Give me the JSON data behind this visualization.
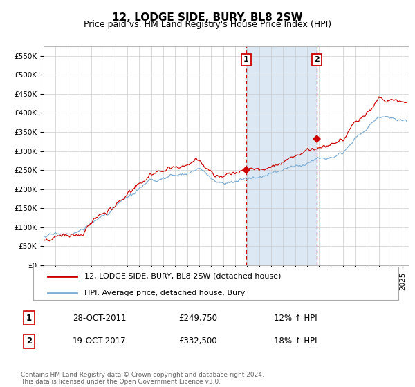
{
  "title": "12, LODGE SIDE, BURY, BL8 2SW",
  "subtitle": "Price paid vs. HM Land Registry's House Price Index (HPI)",
  "ylim": [
    0,
    575000
  ],
  "yticks": [
    0,
    50000,
    100000,
    150000,
    200000,
    250000,
    300000,
    350000,
    400000,
    450000,
    500000,
    550000
  ],
  "ytick_labels": [
    "£0",
    "£50K",
    "£100K",
    "£150K",
    "£200K",
    "£250K",
    "£300K",
    "£350K",
    "£400K",
    "£450K",
    "£500K",
    "£550K"
  ],
  "sale1_date_num": 2011.92,
  "sale1_price": 249750,
  "sale1_label": "1",
  "sale1_text": "28-OCT-2011",
  "sale1_value_text": "£249,750",
  "sale1_hpi_text": "12% ↑ HPI",
  "sale2_date_num": 2017.8,
  "sale2_price": 332500,
  "sale2_label": "2",
  "sale2_text": "19-OCT-2017",
  "sale2_value_text": "£332,500",
  "sale2_hpi_text": "18% ↑ HPI",
  "shade_color": "#dce9f5",
  "vline_color": "#cc0000",
  "line1_color": "#cc0000",
  "line2_color": "#7dadd4",
  "marker_color": "#cc0000",
  "grid_color": "#cccccc",
  "bg_color": "#ffffff",
  "legend_label1": "12, LODGE SIDE, BURY, BL8 2SW (detached house)",
  "legend_label2": "HPI: Average price, detached house, Bury",
  "footer": "Contains HM Land Registry data © Crown copyright and database right 2024.\nThis data is licensed under the Open Government Licence v3.0.",
  "title_fontsize": 11,
  "subtitle_fontsize": 9,
  "axis_fontsize": 7.5,
  "legend_fontsize": 8,
  "footer_fontsize": 6.5,
  "table_fontsize": 8.5
}
